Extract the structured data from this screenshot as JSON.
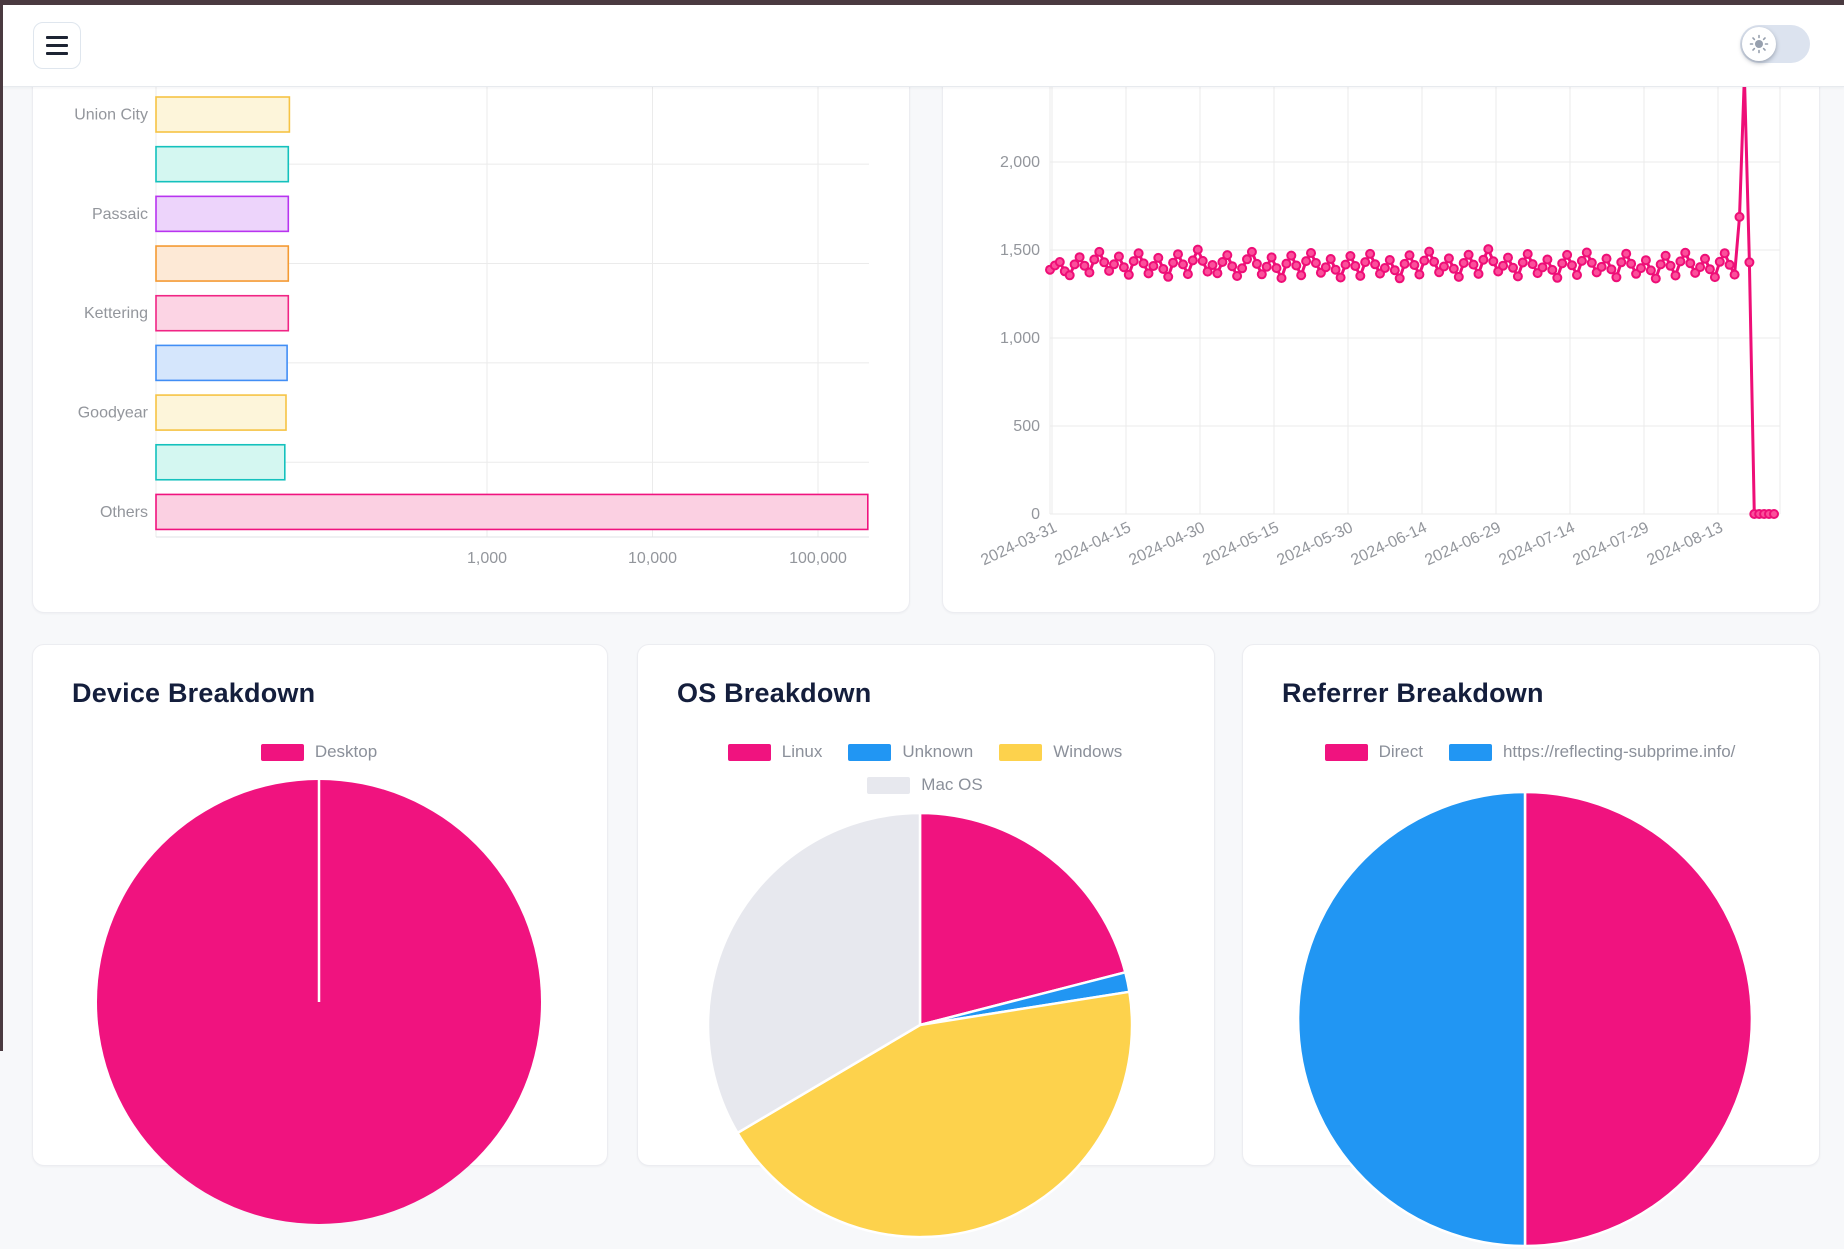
{
  "topbar": {
    "hamburger_icon": "hamburger-menu",
    "theme_toggle": {
      "icon": "sun",
      "state": "off"
    }
  },
  "colors": {
    "accent_pink": "#f0137f",
    "accent_blue": "#2196f3",
    "accent_yellow": "#fdd24c",
    "accent_gray": "#e7e8ee",
    "grid": "#ebebeb",
    "tick_text": "#93969c",
    "title_text": "#141e3c"
  },
  "chart_data": [
    {
      "id": "cities-bar",
      "type": "bar",
      "orientation": "horizontal",
      "x_scale": "log",
      "categories": [
        "Union City",
        "",
        "Passaic",
        "",
        "Kettering",
        "",
        "Goodyear",
        "",
        "Others"
      ],
      "values": [
        64,
        63,
        63,
        63,
        63,
        62,
        61,
        60,
        200000
      ],
      "bar_colors": [
        {
          "fill": "#fdf5da",
          "border": "#f6c344"
        },
        {
          "fill": "#d4f7f1",
          "border": "#14c1bd"
        },
        {
          "fill": "#edd4fb",
          "border": "#b834f0"
        },
        {
          "fill": "#fde9d6",
          "border": "#f49a33"
        },
        {
          "fill": "#fcd4e4",
          "border": "#f02585"
        },
        {
          "fill": "#d5e6fc",
          "border": "#418ef5"
        },
        {
          "fill": "#fdf5da",
          "border": "#f6c344"
        },
        {
          "fill": "#d4f7f1",
          "border": "#14c1bd"
        },
        {
          "fill": "#fbd0e2",
          "border": "#f0137f"
        }
      ],
      "x_ticks": [
        "1,000",
        "10,000",
        "100,000"
      ],
      "x_tick_values": [
        1000,
        10000,
        100000
      ],
      "xlim": [
        10,
        320000
      ],
      "grid": true
    },
    {
      "id": "visitors-line",
      "type": "line",
      "line_color": "#ee0e77",
      "point_fill": "#fb4f9b",
      "start_date": "2024-03-30",
      "interval_days": 1,
      "x_ticks": [
        "2024-03-31",
        "2024-04-15",
        "2024-04-30",
        "2024-05-15",
        "2024-05-30",
        "2024-06-14",
        "2024-06-29",
        "2024-07-14",
        "2024-07-29",
        "2024-08-13"
      ],
      "y_ticks": [
        "0",
        "500",
        "1,000",
        "1,500",
        "2,000"
      ],
      "y_tick_values": [
        0,
        500,
        1000,
        1500,
        2000
      ],
      "ylim": [
        0,
        2500
      ],
      "grid": true,
      "values": [
        1388,
        1412,
        1432,
        1379,
        1356,
        1418,
        1459,
        1411,
        1372,
        1446,
        1489,
        1430,
        1381,
        1419,
        1463,
        1402,
        1359,
        1437,
        1481,
        1424,
        1367,
        1409,
        1455,
        1392,
        1348,
        1428,
        1476,
        1418,
        1363,
        1441,
        1502,
        1438,
        1377,
        1415,
        1368,
        1432,
        1471,
        1408,
        1352,
        1396,
        1447,
        1489,
        1421,
        1362,
        1405,
        1458,
        1397,
        1341,
        1423,
        1468,
        1412,
        1357,
        1437,
        1483,
        1426,
        1371,
        1402,
        1449,
        1388,
        1344,
        1417,
        1466,
        1409,
        1353,
        1431,
        1478,
        1419,
        1366,
        1398,
        1443,
        1385,
        1339,
        1421,
        1470,
        1415,
        1361,
        1440,
        1491,
        1433,
        1374,
        1406,
        1452,
        1393,
        1347,
        1426,
        1473,
        1417,
        1364,
        1445,
        1505,
        1436,
        1378,
        1411,
        1457,
        1399,
        1350,
        1429,
        1477,
        1420,
        1369,
        1401,
        1446,
        1387,
        1342,
        1424,
        1472,
        1413,
        1358,
        1438,
        1486,
        1427,
        1373,
        1404,
        1451,
        1390,
        1345,
        1430,
        1479,
        1422,
        1365,
        1397,
        1442,
        1384,
        1338,
        1418,
        1467,
        1410,
        1355,
        1435,
        1484,
        1425,
        1370,
        1403,
        1450,
        1391,
        1346,
        1433,
        1482,
        1416,
        1360,
        1688,
        2490,
        1430,
        0,
        0,
        0,
        0,
        0
      ]
    },
    {
      "id": "device-pie",
      "type": "pie",
      "title": "Device Breakdown",
      "labels": [
        "Desktop"
      ],
      "values": [
        100
      ],
      "colors": [
        "#f0137f"
      ],
      "legend_position": "top"
    },
    {
      "id": "os-pie",
      "type": "pie",
      "title": "OS Breakdown",
      "labels": [
        "Linux",
        "Unknown",
        "Windows",
        "Mac OS"
      ],
      "values": [
        21,
        1.5,
        44,
        33.5
      ],
      "colors": [
        "#f0137f",
        "#2196f3",
        "#fdd24c",
        "#e7e8ee"
      ],
      "legend_position": "top"
    },
    {
      "id": "referrer-pie",
      "type": "pie",
      "title": "Referrer Breakdown",
      "labels": [
        "Direct",
        "https://reflecting-subprime.info/"
      ],
      "values": [
        50,
        50
      ],
      "colors": [
        "#f0137f",
        "#2196f3"
      ],
      "legend_position": "top"
    }
  ]
}
